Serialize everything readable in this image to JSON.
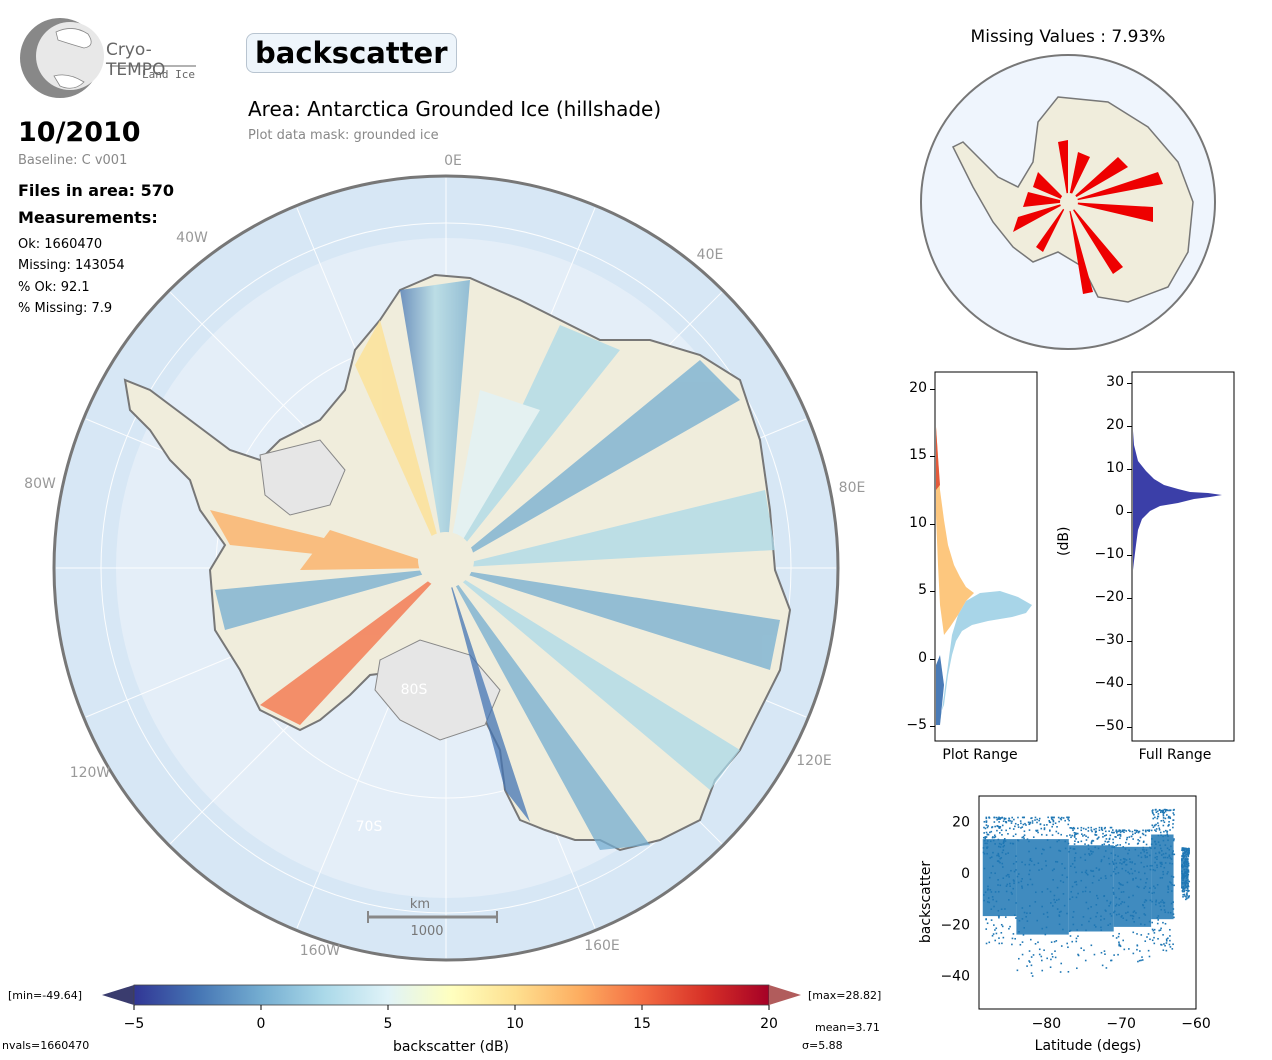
{
  "header": {
    "logo_line1": "Cryo-TEMPO",
    "logo_line2": "Land Ice",
    "variable": "backscatter",
    "area_title": "Area: Antarctica Grounded Ice (hillshade)",
    "mask_note": "Plot data mask: grounded ice"
  },
  "info": {
    "date": "10/2010",
    "baseline": "Baseline: C v001",
    "files": "Files in area: 570",
    "measurements_title": "Measurements:",
    "ok": "Ok: 1660470",
    "missing": "Missing: 143054",
    "pct_ok": "% Ok: 92.1",
    "pct_missing": "% Missing: 7.9"
  },
  "map_labels": {
    "lon_0e": "0E",
    "lon_40e": "40E",
    "lon_80e": "80E",
    "lon_120e": "120E",
    "lon_160e": "160E",
    "lon_160w": "160W",
    "lon_120w": "120W",
    "lon_80w": "80W",
    "lon_40w": "40W",
    "lat_80s": "80S",
    "lat_70s": "70S",
    "scalebar_unit": "km",
    "scalebar_value": "1000"
  },
  "missing_map": {
    "title": "Missing Values : 7.93%"
  },
  "colorbar": {
    "label": "backscatter (dB)",
    "min_label": "[min=-49.64]",
    "max_label": "[max=28.82]",
    "ticks": [
      "−5",
      "0",
      "5",
      "10",
      "15",
      "20"
    ],
    "nvals": "nvals=1660470",
    "mean": "mean=3.71",
    "sigma": "σ=5.88",
    "colors": [
      "#313695",
      "#4575b4",
      "#74add1",
      "#abd9e9",
      "#e0f3f8",
      "#ffffbf",
      "#fee090",
      "#fdae61",
      "#f46d43",
      "#d73027",
      "#a50026"
    ]
  },
  "hist_plot": {
    "xlabel": "Plot Range",
    "yticks": [
      "−5",
      "0",
      "5",
      "10",
      "15",
      "20"
    ]
  },
  "hist_full": {
    "xlabel": "Full Range",
    "ylabel": "(dB)",
    "yticks": [
      "−50",
      "−40",
      "−30",
      "−20",
      "−10",
      "0",
      "10",
      "20",
      "30"
    ],
    "bar_color": "#3b3fa8"
  },
  "chart_data": {
    "type": "scatter",
    "title": "",
    "xlabel": "Latitude (degs)",
    "ylabel": "backscatter",
    "xlim": [
      -89,
      -60
    ],
    "ylim": [
      -53,
      30
    ],
    "xticks": [
      "−80",
      "−70",
      "−60"
    ],
    "yticks": [
      "−40",
      "−20",
      "0",
      "20"
    ],
    "color": "#1f77b4",
    "bands": [
      {
        "x": [
          -88.5,
          -84
        ],
        "y": [
          -28,
          22
        ]
      },
      {
        "x": [
          -84,
          -77
        ],
        "y": [
          -40,
          22
        ]
      },
      {
        "x": [
          -77,
          -71
        ],
        "y": [
          -38,
          18
        ]
      },
      {
        "x": [
          -71,
          -66
        ],
        "y": [
          -35,
          17
        ]
      },
      {
        "x": [
          -66,
          -63
        ],
        "y": [
          -30,
          25
        ]
      },
      {
        "x": [
          -62,
          -61
        ],
        "y": [
          -10,
          10
        ]
      }
    ]
  }
}
